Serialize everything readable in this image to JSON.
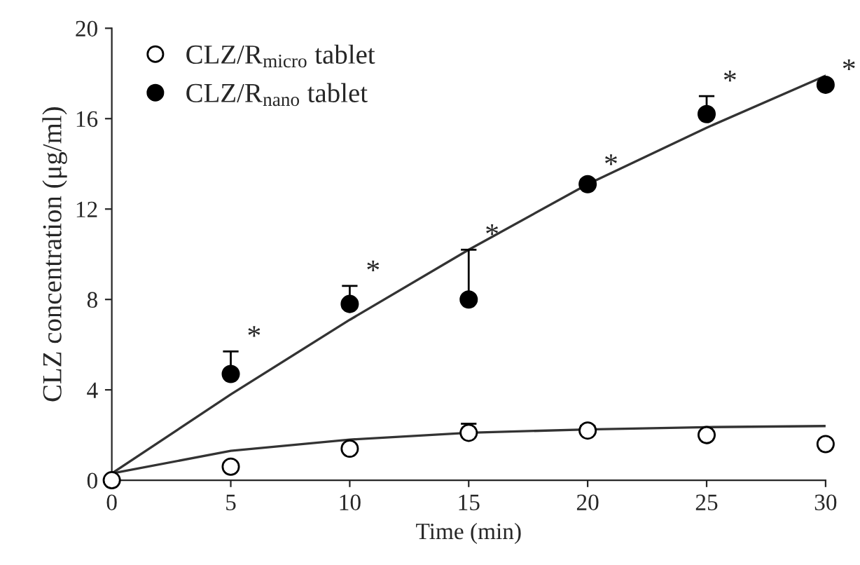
{
  "chart_data": {
    "type": "scatter",
    "xlabel": "Time (min)",
    "ylabel": "CLZ concentration (μg/ml)",
    "x": [
      0,
      5,
      10,
      15,
      20,
      25,
      30
    ],
    "series": [
      {
        "name": "CLZ/R$_{micro}$ tablet",
        "color": "#ffffff",
        "marker": "circle",
        "values": [
          0,
          0.6,
          1.4,
          2.1,
          2.2,
          2.0,
          1.6
        ],
        "errors": [
          null,
          null,
          null,
          [
            2.1,
            2.5
          ],
          [
            2.2,
            2.4
          ],
          null,
          null
        ]
      },
      {
        "name": "CLZ/R$_{nano}$ tablet",
        "color": "#000000",
        "marker": "circle",
        "values": [
          null,
          4.7,
          7.8,
          8.0,
          13.1,
          16.2,
          17.5
        ],
        "errors": [
          null,
          [
            4.7,
            5.7
          ],
          [
            7.8,
            8.6
          ],
          [
            8.0,
            10.2
          ],
          [
            13.1,
            13.3
          ],
          [
            16.2,
            17.0
          ],
          null
        ]
      },
      {
        "type": "line",
        "color": "#333333",
        "marker": "none",
        "values": [
          0.3,
          1.3,
          1.8,
          2.1,
          2.25,
          2.35,
          2.4
        ]
      },
      {
        "type": "line",
        "color": "#333333",
        "marker": "none",
        "values": [
          0.3,
          3.8,
          7.1,
          10.2,
          13.1,
          15.6,
          17.9
        ]
      }
    ],
    "annotations": [
      {
        "text": "*",
        "x": 5,
        "y": 5.7
      },
      {
        "text": "*",
        "x": 10,
        "y": 8.6
      },
      {
        "text": "*",
        "x": 15,
        "y": 10.2
      },
      {
        "text": "*",
        "x": 20,
        "y": 13.3
      },
      {
        "text": "*",
        "x": 25,
        "y": 17.0
      },
      {
        "text": "*",
        "x": 30,
        "y": 17.5
      }
    ],
    "xlim": [
      0,
      30
    ],
    "ylim": [
      0,
      20
    ],
    "xticks": [
      0,
      5,
      10,
      15,
      20,
      25,
      30
    ],
    "yticks": [
      0,
      4,
      8,
      12,
      16,
      20
    ],
    "grid": false,
    "legend": "top left"
  }
}
